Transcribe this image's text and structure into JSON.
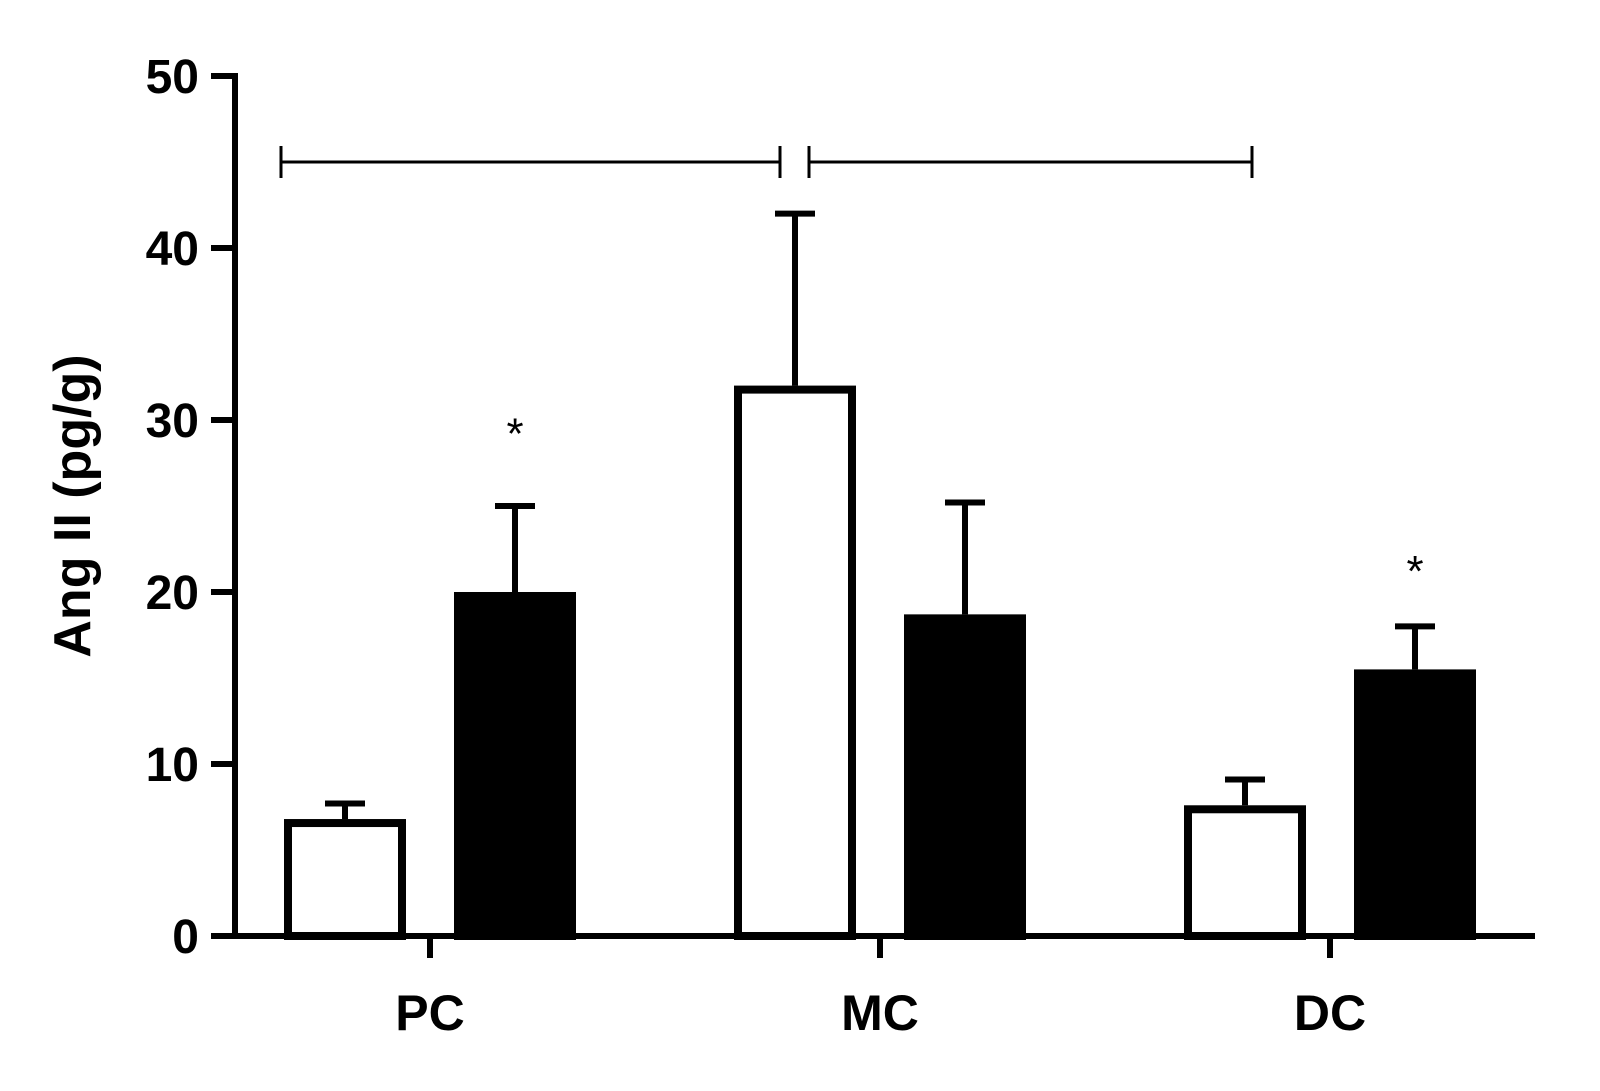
{
  "chart_data": {
    "type": "bar",
    "ylabel": "Ang II (pg/g)",
    "ylim": [
      0,
      50
    ],
    "yticks": [
      0,
      10,
      20,
      30,
      40,
      50
    ],
    "categories": [
      "PC",
      "MC",
      "DC"
    ],
    "series": [
      {
        "style": "white",
        "values": [
          6.8,
          32,
          7.6
        ],
        "error_upper": [
          7.7,
          42,
          9.1
        ]
      },
      {
        "style": "black",
        "values": [
          20,
          18.7,
          15.5
        ],
        "error_upper": [
          25,
          25.2,
          18
        ]
      }
    ],
    "annotations": [
      {
        "text": "*",
        "category": 0,
        "series": 1,
        "y": 29.5
      },
      {
        "text": "*",
        "category": 2,
        "series": 1,
        "y": 21.5
      }
    ],
    "brackets": [
      {
        "y": 45,
        "from": {
          "category": 0,
          "series": 0
        },
        "to": {
          "category": 1,
          "series": 0
        }
      },
      {
        "y": 45,
        "from": {
          "category": 1,
          "series": 0
        },
        "to": {
          "category": 2,
          "series": 0
        }
      }
    ]
  }
}
